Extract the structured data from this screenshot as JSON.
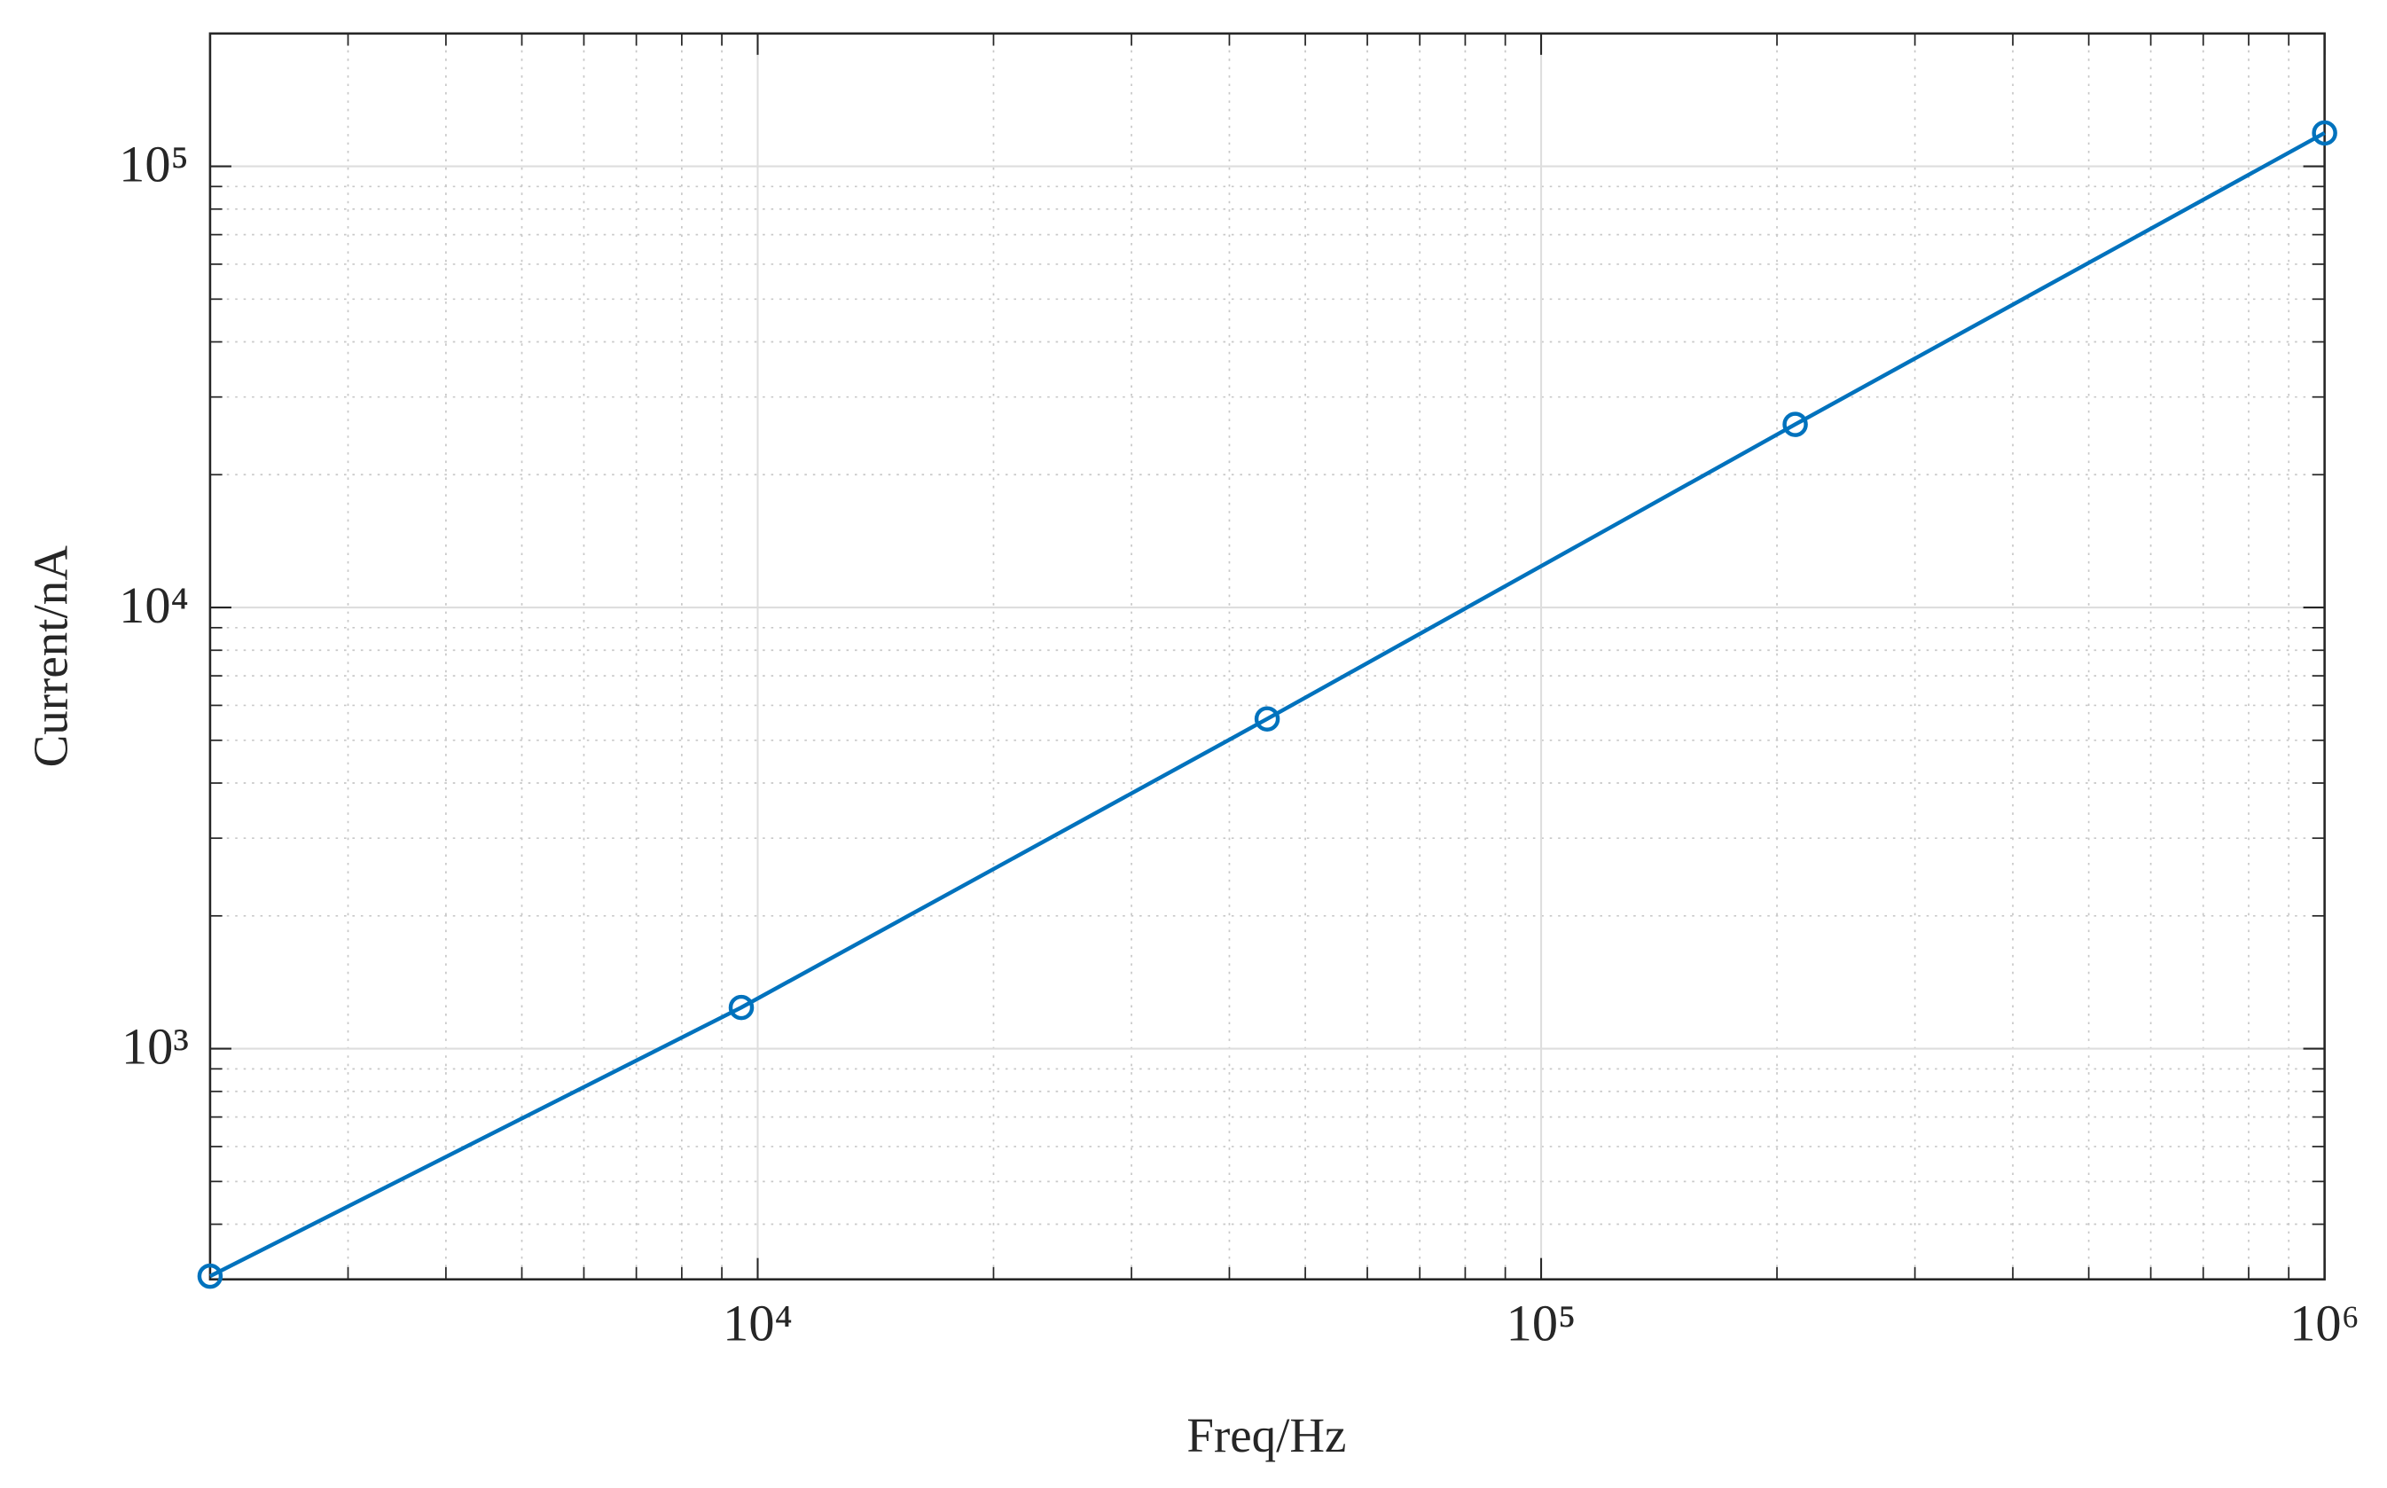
{
  "chart_data": {
    "type": "line",
    "x_label": "Freq/Hz",
    "y_label": "Current/nA",
    "x": [
      2000,
      9530,
      44700,
      211000,
      1000000
    ],
    "series": [
      {
        "color": "#0072bd",
        "marker": "circle",
        "values": [
          305,
          1240,
          5590,
          26000,
          119000
        ]
      }
    ],
    "xlim": [
      2000,
      1000000
    ],
    "ylim": [
      300,
      200000
    ],
    "xticks": [
      {
        "value": 10000,
        "label": "10⁴"
      },
      {
        "value": 100000,
        "label": "10⁵"
      },
      {
        "value": 1000000,
        "label": "10⁶"
      }
    ],
    "yticks": [
      {
        "value": 1000,
        "label": "10³"
      },
      {
        "value": 10000,
        "label": "10⁴"
      },
      {
        "value": 100000,
        "label": "10⁵"
      }
    ],
    "xscale": "log",
    "yscale": "log",
    "grid": true,
    "minor_grid": true
  }
}
